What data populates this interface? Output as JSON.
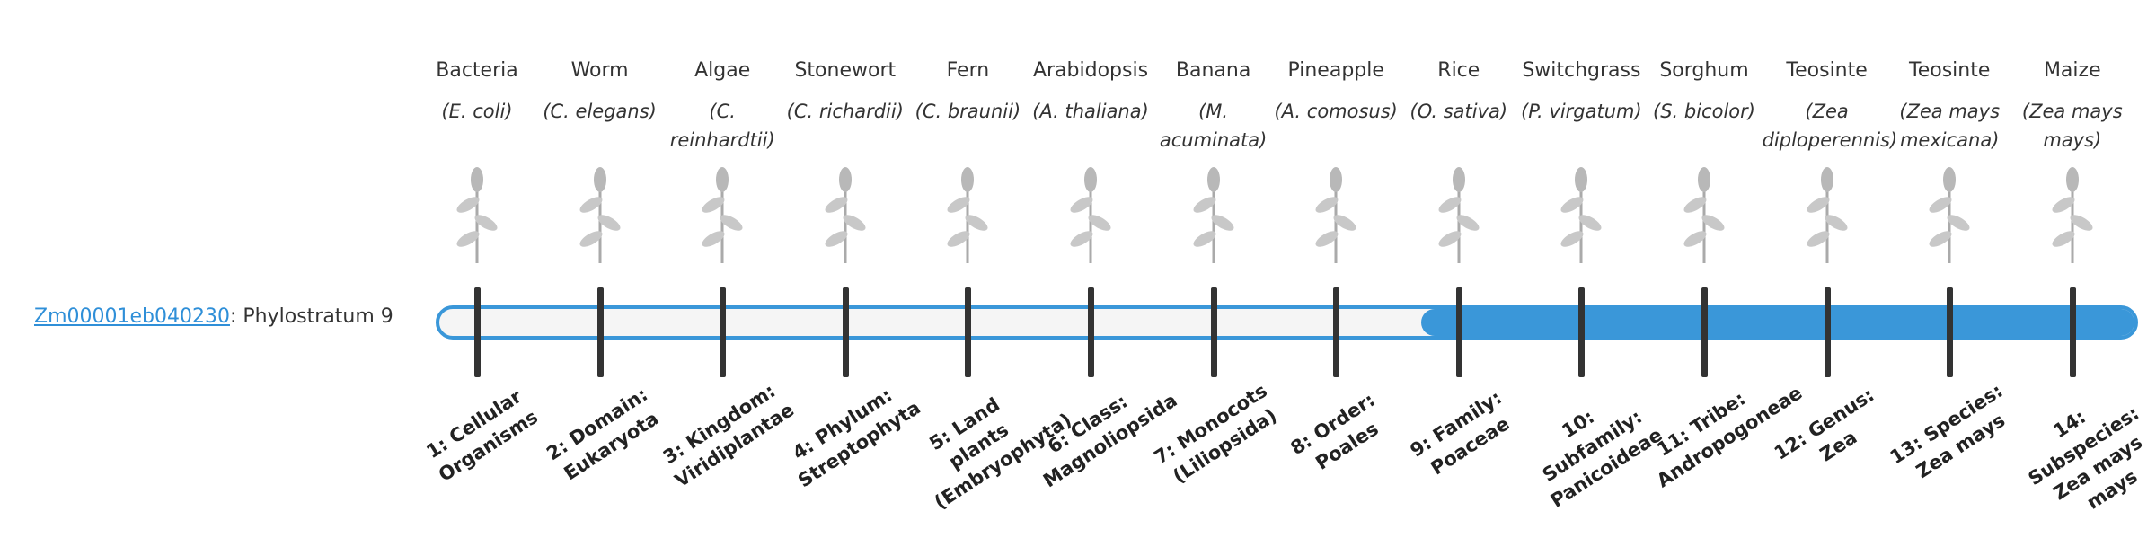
{
  "gene": {
    "id": "Zm00001eb040230",
    "label": ": Phylostratum 9"
  },
  "strata": [
    {
      "name": "Bacteria",
      "species": "(E. coli)",
      "level": "1: Cellular Organisms"
    },
    {
      "name": "Worm",
      "species": "(C. elegans)",
      "level": "2: Domain: Eukaryota"
    },
    {
      "name": "Algae",
      "species": "(C. reinhardtii)",
      "level": "3: Kingdom: Viridiplantae"
    },
    {
      "name": "Stonewort",
      "species": "(C. richardii)",
      "level": "4: Phylum: Streptophyta"
    },
    {
      "name": "Fern",
      "species": "(C. braunii)",
      "level": "5: Land plants (Embryophyta)"
    },
    {
      "name": "Arabidopsis",
      "species": "(A. thaliana)",
      "level": "6: Class: Magnoliopsida"
    },
    {
      "name": "Banana",
      "species": "(M. acuminata)",
      "level": "7: Monocots (Liliopsida)"
    },
    {
      "name": "Pineapple",
      "species": "(A. comosus)",
      "level": "8: Order: Poales"
    },
    {
      "name": "Rice",
      "species": "(O. sativa)",
      "level": "9: Family: Poaceae"
    },
    {
      "name": "Switchgrass",
      "species": "(P. virgatum)",
      "level": "10: Subfamily: Panicoideae"
    },
    {
      "name": "Sorghum",
      "species": "(S. bicolor)",
      "level": "11: Tribe: Andropogoneae"
    },
    {
      "name": "Teosinte",
      "species": "(Zea diploperennis)",
      "level": "12: Genus: Zea"
    },
    {
      "name": "Teosinte",
      "species": "(Zea mays mexicana)",
      "level": "13: Species: Zea mays"
    },
    {
      "name": "Maize",
      "species": "(Zea mays mays)",
      "level": "14: Subspecies: Zea mays mays"
    }
  ]
}
